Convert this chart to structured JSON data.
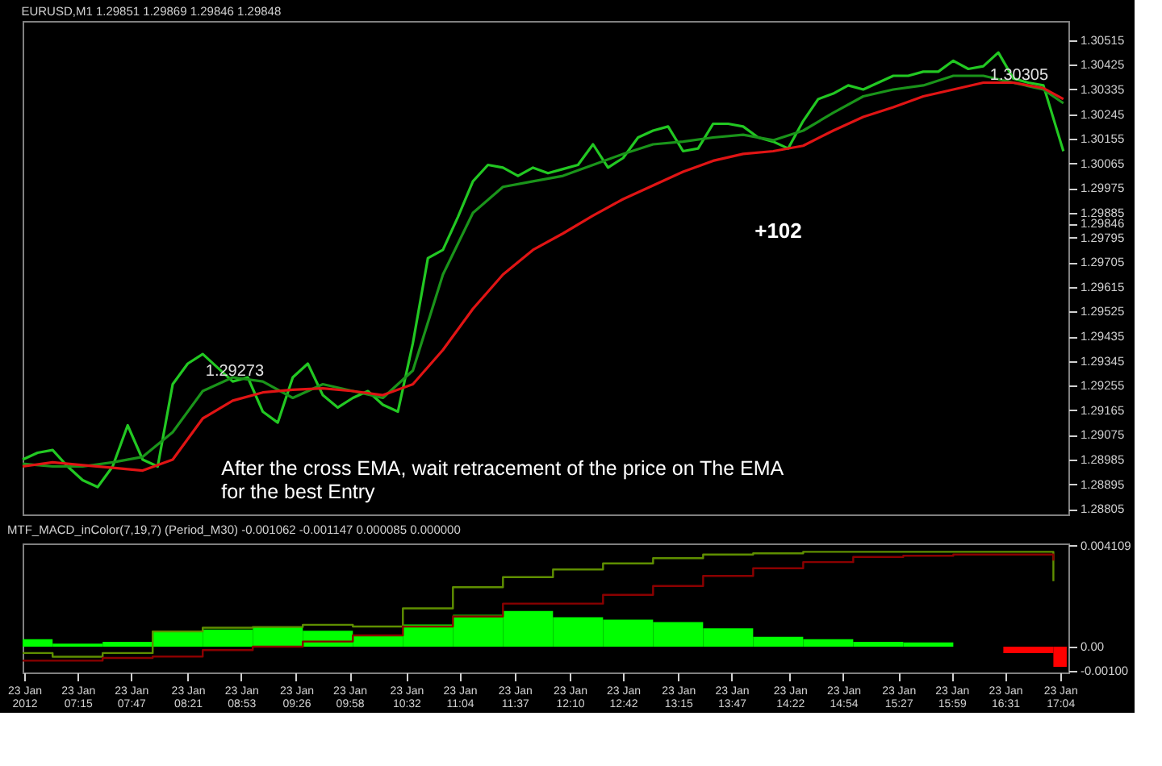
{
  "chart_data": [
    {
      "type": "line",
      "title": "EURUSD,M1  1.29851 1.29869 1.29846 1.29848",
      "xlim": [
        "2012-01-23T06:42",
        "2012-01-23T17:09"
      ],
      "ylim": [
        1.28785,
        1.30585
      ],
      "tick_labels": "y",
      "yticks": [
        1.30515,
        1.30425,
        1.30335,
        1.30245,
        1.30155,
        1.30065,
        1.29975,
        1.29885,
        {
          "value": 1.29846,
          "label": "1.29846"
        },
        1.29795,
        1.29705,
        1.29615,
        1.29525,
        1.29435,
        1.29345,
        1.29255,
        1.29165,
        1.29075,
        1.28985,
        1.28895,
        1.28805
      ],
      "series": [
        {
          "color": "#22c822",
          "x": [
            "2012-01-23T06:42",
            "2012-01-23T06:51",
            "2012-01-23T07:00",
            "2012-01-23T07:09",
            "2012-01-23T07:18",
            "2012-01-23T07:27",
            "2012-01-23T07:36",
            "2012-01-23T07:45",
            "2012-01-23T07:54",
            "2012-01-23T08:03",
            "2012-01-23T08:12",
            "2012-01-23T08:21",
            "2012-01-23T08:30",
            "2012-01-23T08:39",
            "2012-01-23T08:48",
            "2012-01-23T08:57",
            "2012-01-23T09:06",
            "2012-01-23T09:15",
            "2012-01-23T09:24",
            "2012-01-23T09:33",
            "2012-01-23T09:42",
            "2012-01-23T09:51",
            "2012-01-23T10:00",
            "2012-01-23T10:09",
            "2012-01-23T10:18",
            "2012-01-23T10:27",
            "2012-01-23T10:36",
            "2012-01-23T10:45",
            "2012-01-23T10:54",
            "2012-01-23T11:03",
            "2012-01-23T11:12",
            "2012-01-23T11:21",
            "2012-01-23T11:30",
            "2012-01-23T11:39",
            "2012-01-23T11:48",
            "2012-01-23T11:57",
            "2012-01-23T12:06",
            "2012-01-23T12:15",
            "2012-01-23T12:24",
            "2012-01-23T12:33",
            "2012-01-23T12:42",
            "2012-01-23T12:51",
            "2012-01-23T13:00",
            "2012-01-23T13:09",
            "2012-01-23T13:18",
            "2012-01-23T13:27",
            "2012-01-23T13:36",
            "2012-01-23T13:45",
            "2012-01-23T13:54",
            "2012-01-23T14:03",
            "2012-01-23T14:12",
            "2012-01-23T14:21",
            "2012-01-23T14:30",
            "2012-01-23T14:39",
            "2012-01-23T14:48",
            "2012-01-23T14:57",
            "2012-01-23T15:06",
            "2012-01-23T15:15",
            "2012-01-23T15:24",
            "2012-01-23T15:33",
            "2012-01-23T15:42",
            "2012-01-23T15:51",
            "2012-01-23T16:00",
            "2012-01-23T16:09",
            "2012-01-23T16:18",
            "2012-01-23T16:27",
            "2012-01-23T16:36",
            "2012-01-23T16:45",
            "2012-01-23T16:54",
            "2012-01-23T17:03",
            "2012-01-23T17:06"
          ],
          "values": [
            1.28985,
            1.2901,
            1.2902,
            1.2896,
            1.2891,
            1.28885,
            1.2896,
            1.2911,
            1.28985,
            1.2896,
            1.2926,
            1.29335,
            1.2937,
            1.2932,
            1.2927,
            1.29285,
            1.2916,
            1.2912,
            1.29285,
            1.29335,
            1.2922,
            1.29175,
            1.2921,
            1.29235,
            1.29185,
            1.2916,
            1.2941,
            1.2972,
            1.2975,
            1.2987,
            1.3,
            1.3006,
            1.3005,
            1.3002,
            1.3005,
            1.3003,
            1.30045,
            1.3006,
            1.30135,
            1.3005,
            1.30085,
            1.3016,
            1.30185,
            1.302,
            1.3011,
            1.3012,
            1.3021,
            1.3021,
            1.302,
            1.3016,
            1.30145,
            1.3012,
            1.3022,
            1.303,
            1.3032,
            1.3035,
            1.30335,
            1.3036,
            1.30385,
            1.30385,
            1.304,
            1.304,
            1.3044,
            1.3041,
            1.3042,
            1.3047,
            1.30375,
            1.3036,
            1.3035,
            1.3017,
            1.3011
          ]
        },
        {
          "color": "#1a941a",
          "x": [
            "2012-01-23T06:42",
            "2012-01-23T07:00",
            "2012-01-23T07:18",
            "2012-01-23T07:36",
            "2012-01-23T07:54",
            "2012-01-23T08:12",
            "2012-01-23T08:30",
            "2012-01-23T08:48",
            "2012-01-23T09:06",
            "2012-01-23T09:24",
            "2012-01-23T09:42",
            "2012-01-23T10:00",
            "2012-01-23T10:18",
            "2012-01-23T10:36",
            "2012-01-23T10:54",
            "2012-01-23T11:12",
            "2012-01-23T11:30",
            "2012-01-23T11:48",
            "2012-01-23T12:06",
            "2012-01-23T12:24",
            "2012-01-23T12:42",
            "2012-01-23T13:00",
            "2012-01-23T13:18",
            "2012-01-23T13:36",
            "2012-01-23T13:54",
            "2012-01-23T14:12",
            "2012-01-23T14:30",
            "2012-01-23T14:48",
            "2012-01-23T15:06",
            "2012-01-23T15:24",
            "2012-01-23T15:42",
            "2012-01-23T16:00",
            "2012-01-23T16:18",
            "2012-01-23T16:36",
            "2012-01-23T16:54",
            "2012-01-23T17:06"
          ],
          "values": [
            1.2897,
            1.2896,
            1.2896,
            1.28975,
            1.28995,
            1.29085,
            1.29235,
            1.29285,
            1.2927,
            1.2921,
            1.2926,
            1.29235,
            1.2921,
            1.2931,
            1.2966,
            1.29885,
            1.2998,
            1.3,
            1.3002,
            1.3006,
            1.301,
            1.30135,
            1.30145,
            1.3016,
            1.3017,
            1.3015,
            1.30185,
            1.3025,
            1.3031,
            1.30335,
            1.3035,
            1.30385,
            1.30385,
            1.3036,
            1.30335,
            1.30285
          ]
        },
        {
          "color": "#e01414",
          "x": [
            "2012-01-23T06:42",
            "2012-01-23T07:00",
            "2012-01-23T07:18",
            "2012-01-23T07:36",
            "2012-01-23T07:54",
            "2012-01-23T08:12",
            "2012-01-23T08:30",
            "2012-01-23T08:48",
            "2012-01-23T09:06",
            "2012-01-23T09:24",
            "2012-01-23T09:42",
            "2012-01-23T10:00",
            "2012-01-23T10:18",
            "2012-01-23T10:36",
            "2012-01-23T10:54",
            "2012-01-23T11:12",
            "2012-01-23T11:30",
            "2012-01-23T11:48",
            "2012-01-23T12:06",
            "2012-01-23T12:24",
            "2012-01-23T12:42",
            "2012-01-23T13:00",
            "2012-01-23T13:18",
            "2012-01-23T13:36",
            "2012-01-23T13:54",
            "2012-01-23T14:12",
            "2012-01-23T14:30",
            "2012-01-23T14:48",
            "2012-01-23T15:06",
            "2012-01-23T15:24",
            "2012-01-23T15:42",
            "2012-01-23T16:00",
            "2012-01-23T16:18",
            "2012-01-23T16:36",
            "2012-01-23T16:54",
            "2012-01-23T17:06"
          ],
          "values": [
            1.2896,
            1.28975,
            1.28965,
            1.28955,
            1.28945,
            1.28985,
            1.29135,
            1.292,
            1.2923,
            1.2924,
            1.29245,
            1.29235,
            1.2922,
            1.2926,
            1.29385,
            1.29535,
            1.2966,
            1.2975,
            1.2981,
            1.29875,
            1.29935,
            1.29985,
            1.30035,
            1.30075,
            1.301,
            1.3011,
            1.3013,
            1.30185,
            1.30235,
            1.3027,
            1.3031,
            1.30335,
            1.3036,
            1.3036,
            1.3034,
            1.303
          ]
        }
      ],
      "annotations": [
        "+102",
        "After the cross EMA, wait retracement of the price on The EMA\nfor the best Entry",
        "1.29273",
        "1.30305"
      ]
    },
    {
      "type": "bar",
      "title": "MTF_MACD_inColor(7,19,7) (Period_M30) -0.001062 -0.001147 0.000085 0.000000",
      "xlim": [
        "2012-01-23T06:42",
        "2012-01-23T17:09"
      ],
      "ylim": [
        -0.00105,
        0.0042
      ],
      "yticks": [
        {
          "value": 0.004109,
          "label": "0.004109"
        },
        {
          "value": 0,
          "label": "0.00"
        },
        {
          "value": -0.001,
          "label": "-0.00100"
        }
      ],
      "xticks": [
        {
          "value": "2012-01-23T06:43",
          "label": "23 Jan 2012"
        },
        {
          "value": "2012-01-23T07:15",
          "label": "23 Jan 07:15"
        },
        {
          "value": "2012-01-23T07:47",
          "label": "23 Jan 07:47"
        },
        {
          "value": "2012-01-23T08:21",
          "label": "23 Jan 08:21"
        },
        {
          "value": "2012-01-23T08:53",
          "label": "23 Jan 08:53"
        },
        {
          "value": "2012-01-23T09:26",
          "label": "23 Jan 09:26"
        },
        {
          "value": "2012-01-23T09:58",
          "label": "23 Jan 09:58"
        },
        {
          "value": "2012-01-23T10:32",
          "label": "23 Jan 10:32"
        },
        {
          "value": "2012-01-23T11:04",
          "label": "23 Jan 11:04"
        },
        {
          "value": "2012-01-23T11:37",
          "label": "23 Jan 11:37"
        },
        {
          "value": "2012-01-23T12:10",
          "label": "23 Jan 12:10"
        },
        {
          "value": "2012-01-23T12:42",
          "label": "23 Jan 12:42"
        },
        {
          "value": "2012-01-23T13:15",
          "label": "23 Jan 13:15"
        },
        {
          "value": "2012-01-23T13:47",
          "label": "23 Jan 13:47"
        },
        {
          "value": "2012-01-23T14:22",
          "label": "23 Jan 14:22"
        },
        {
          "value": "2012-01-23T14:54",
          "label": "23 Jan 14:54"
        },
        {
          "value": "2012-01-23T15:27",
          "label": "23 Jan 15:27"
        },
        {
          "value": "2012-01-23T15:59",
          "label": "23 Jan 15:59"
        },
        {
          "value": "2012-01-23T16:31",
          "label": "23 Jan 16:31"
        },
        {
          "value": "2012-01-23T17:04",
          "label": "23 Jan 17:04"
        }
      ],
      "x": [
        "2012-01-23T06:51",
        "2012-01-23T07:15",
        "2012-01-23T07:45",
        "2012-01-23T08:15",
        "2012-01-23T08:45",
        "2012-01-23T09:15",
        "2012-01-23T09:45",
        "2012-01-23T10:15",
        "2012-01-23T10:45",
        "2012-01-23T11:15",
        "2012-01-23T11:45",
        "2012-01-23T12:15",
        "2012-01-23T12:45",
        "2012-01-23T13:15",
        "2012-01-23T13:45",
        "2012-01-23T14:15",
        "2012-01-23T14:45",
        "2012-01-23T15:15",
        "2012-01-23T15:45",
        "2012-01-23T16:15",
        "2012-01-23T16:45",
        "2012-01-23T17:04"
      ],
      "series": [
        {
          "colors": [
            "#00ff00",
            "#00ff00",
            "#00ff00",
            "#00ff00",
            "#00ff00",
            "#00ff00",
            "#00ff00",
            "#00ff00",
            "#00ff00",
            "#00ff00",
            "#00ff00",
            "#00ff00",
            "#00ff00",
            "#00ff00",
            "#00ff00",
            "#00ff00",
            "#00ff00",
            "#00ff00",
            "#00ff00",
            "#8b0000",
            "#ff0000",
            "#ff0000"
          ],
          "values": [
            0.0003,
            0.00012,
            0.0002,
            0.0006,
            0.0007,
            0.0008,
            0.00065,
            0.00045,
            0.0009,
            0.0013,
            0.00145,
            0.0012,
            0.0011,
            0.001,
            0.00075,
            0.0004,
            0.0003,
            0.0002,
            0.00017,
            0,
            -0.00026,
            -0.00082
          ]
        },
        {
          "type": "step",
          "color": "#5f8f00",
          "x": [
            "2012-01-23T06:42",
            "2012-01-23T07:00",
            "2012-01-23T07:30",
            "2012-01-23T08:00",
            "2012-01-23T08:30",
            "2012-01-23T09:00",
            "2012-01-23T09:30",
            "2012-01-23T10:00",
            "2012-01-23T10:30",
            "2012-01-23T11:00",
            "2012-01-23T11:30",
            "2012-01-23T12:00",
            "2012-01-23T12:30",
            "2012-01-23T13:00",
            "2012-01-23T13:30",
            "2012-01-23T14:00",
            "2012-01-23T14:30",
            "2012-01-23T15:00",
            "2012-01-23T15:30",
            "2012-01-23T16:00",
            "2012-01-23T16:30",
            "2012-01-23T17:00"
          ],
          "values": [
            -0.00026,
            -0.00041,
            -0.00026,
            0.00062,
            0.00077,
            0.0008,
            0.00089,
            0.00082,
            0.00156,
            0.00242,
            0.00283,
            0.00314,
            0.00339,
            0.0036,
            0.00375,
            0.0038,
            0.00386,
            0.00386,
            0.00386,
            0.00386,
            0.00386,
            0.00267
          ]
        },
        {
          "type": "step",
          "color": "#8b0000",
          "x": [
            "2012-01-23T06:42",
            "2012-01-23T07:00",
            "2012-01-23T07:30",
            "2012-01-23T08:00",
            "2012-01-23T08:30",
            "2012-01-23T09:00",
            "2012-01-23T09:30",
            "2012-01-23T10:00",
            "2012-01-23T10:30",
            "2012-01-23T11:00",
            "2012-01-23T11:30",
            "2012-01-23T12:00",
            "2012-01-23T12:30",
            "2012-01-23T13:00",
            "2012-01-23T13:30",
            "2012-01-23T14:00",
            "2012-01-23T14:30",
            "2012-01-23T15:00",
            "2012-01-23T15:30",
            "2012-01-23T16:00",
            "2012-01-23T16:30",
            "2012-01-23T17:00"
          ],
          "values": [
            -0.00057,
            -0.00057,
            -0.00046,
            -0.0004,
            -0.00014,
            0,
            0.00021,
            0.00046,
            0.00082,
            0.00123,
            0.00175,
            0.00175,
            0.00211,
            0.00247,
            0.00288,
            0.00319,
            0.00344,
            0.00365,
            0.0037,
            0.00375,
            0.00375,
            0.0035
          ]
        }
      ]
    }
  ]
}
